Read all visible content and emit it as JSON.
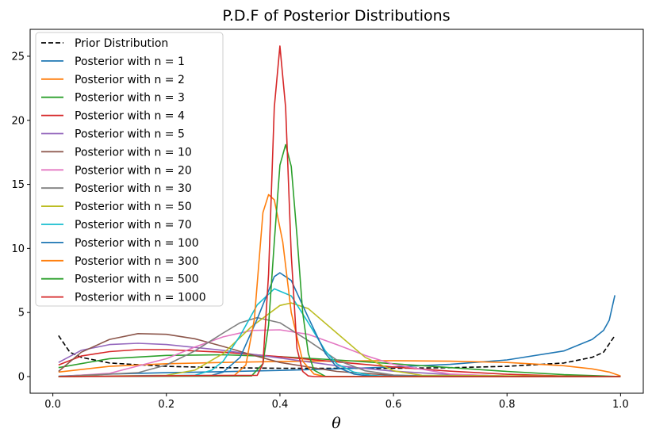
{
  "chart_data": {
    "type": "line",
    "title": "P.D.F of Posterior Distributions",
    "xlabel": "θ",
    "ylabel": "",
    "xlim": [
      -0.04,
      1.04
    ],
    "ylim": [
      -1.3,
      27.1
    ],
    "x_ticks": [
      0,
      0.2,
      0.4,
      0.6,
      0.8,
      1.0
    ],
    "x_tick_labels": [
      "0.0",
      "0.2",
      "0.4",
      "0.6",
      "0.8",
      "1.0"
    ],
    "y_ticks": [
      0,
      5,
      10,
      15,
      20,
      25
    ],
    "y_tick_labels": [
      "0",
      "5",
      "10",
      "15",
      "20",
      "25"
    ],
    "grid": false,
    "legend_position": "top-left",
    "series": [
      {
        "name": "Prior Distribution",
        "color": "#000000",
        "dash": "dashed",
        "x": [
          0.01,
          0.03,
          0.05,
          0.1,
          0.2,
          0.3,
          0.4,
          0.5,
          0.6,
          0.7,
          0.8,
          0.9,
          0.95,
          0.97,
          0.99
        ],
        "y": [
          3.2,
          1.9,
          1.5,
          1.06,
          0.8,
          0.69,
          0.65,
          0.64,
          0.65,
          0.69,
          0.8,
          1.06,
          1.5,
          1.9,
          3.2
        ]
      },
      {
        "name": "Posterior with n = 1",
        "color": "#1f77b4",
        "x": [
          0.01,
          0.1,
          0.2,
          0.3,
          0.4,
          0.5,
          0.6,
          0.7,
          0.8,
          0.9,
          0.95,
          0.97,
          0.98,
          0.99
        ],
        "y": [
          0.03,
          0.2,
          0.3,
          0.38,
          0.48,
          0.6,
          0.75,
          0.95,
          1.3,
          2.0,
          2.9,
          3.6,
          4.4,
          6.35
        ]
      },
      {
        "name": "Posterior with n = 2",
        "color": "#ff7f0e",
        "x": [
          0.01,
          0.1,
          0.2,
          0.3,
          0.4,
          0.5,
          0.6,
          0.7,
          0.8,
          0.9,
          0.95,
          0.98,
          1.0
        ],
        "y": [
          0.35,
          0.8,
          1.0,
          1.1,
          1.18,
          1.22,
          1.24,
          1.2,
          1.1,
          0.85,
          0.6,
          0.35,
          0.05
        ]
      },
      {
        "name": "Posterior with n = 3",
        "color": "#2ca02c",
        "x": [
          0.01,
          0.1,
          0.2,
          0.3,
          0.4,
          0.5,
          0.6,
          0.7,
          0.8,
          0.9,
          1.0
        ],
        "y": [
          0.7,
          1.4,
          1.65,
          1.7,
          1.55,
          1.3,
          1.0,
          0.7,
          0.4,
          0.15,
          0.0
        ]
      },
      {
        "name": "Posterior with n = 4",
        "color": "#d62728",
        "x": [
          0.01,
          0.05,
          0.1,
          0.15,
          0.2,
          0.3,
          0.4,
          0.5,
          0.6,
          0.7,
          0.8,
          0.9,
          1.0
        ],
        "y": [
          0.9,
          1.6,
          1.95,
          2.1,
          2.1,
          1.9,
          1.55,
          1.15,
          0.75,
          0.42,
          0.18,
          0.04,
          0.0
        ]
      },
      {
        "name": "Posterior with n = 5",
        "color": "#9467bd",
        "x": [
          0.01,
          0.05,
          0.1,
          0.15,
          0.2,
          0.3,
          0.4,
          0.5,
          0.6,
          0.7,
          0.8,
          0.9,
          1.0
        ],
        "y": [
          1.1,
          2.05,
          2.5,
          2.6,
          2.5,
          2.05,
          1.45,
          0.85,
          0.42,
          0.16,
          0.04,
          0.0,
          0.0
        ]
      },
      {
        "name": "Posterior with n = 10",
        "color": "#8c564b",
        "x": [
          0.01,
          0.05,
          0.1,
          0.15,
          0.2,
          0.25,
          0.3,
          0.35,
          0.4,
          0.5,
          0.6,
          0.7,
          0.8,
          1.0
        ],
        "y": [
          0.4,
          1.9,
          2.9,
          3.35,
          3.3,
          2.95,
          2.35,
          1.7,
          1.1,
          0.4,
          0.1,
          0.02,
          0.0,
          0.0
        ]
      },
      {
        "name": "Posterior with n = 20",
        "color": "#e377c2",
        "x": [
          0.01,
          0.1,
          0.2,
          0.25,
          0.3,
          0.35,
          0.4,
          0.45,
          0.5,
          0.55,
          0.6,
          0.7,
          0.8,
          1.0
        ],
        "y": [
          0.0,
          0.25,
          1.4,
          2.3,
          3.1,
          3.6,
          3.65,
          3.3,
          2.5,
          1.65,
          0.95,
          0.2,
          0.02,
          0.0
        ]
      },
      {
        "name": "Posterior with n = 30",
        "color": "#7f7f7f",
        "x": [
          0.01,
          0.15,
          0.2,
          0.25,
          0.3,
          0.33,
          0.36,
          0.4,
          0.45,
          0.5,
          0.55,
          0.6,
          0.7,
          1.0
        ],
        "y": [
          0.0,
          0.3,
          0.9,
          2.0,
          3.4,
          4.2,
          4.6,
          4.2,
          2.8,
          1.3,
          0.45,
          0.12,
          0.0,
          0.0
        ]
      },
      {
        "name": "Posterior with n = 50",
        "color": "#bcbd22",
        "x": [
          0.01,
          0.2,
          0.25,
          0.3,
          0.35,
          0.4,
          0.42,
          0.45,
          0.5,
          0.55,
          0.6,
          0.65,
          1.0
        ],
        "y": [
          0.0,
          0.1,
          0.5,
          1.8,
          3.9,
          5.55,
          5.75,
          5.3,
          3.4,
          1.5,
          0.45,
          0.1,
          0.0
        ]
      },
      {
        "name": "Posterior with n = 70",
        "color": "#17becf",
        "x": [
          0.01,
          0.25,
          0.28,
          0.3,
          0.33,
          0.36,
          0.39,
          0.42,
          0.45,
          0.48,
          0.5,
          0.53,
          0.56,
          0.6,
          1.0
        ],
        "y": [
          0.0,
          0.1,
          0.5,
          1.2,
          3.2,
          5.6,
          6.85,
          6.3,
          4.2,
          2.0,
          1.0,
          0.35,
          0.1,
          0.0,
          0.0
        ]
      },
      {
        "name": "Posterior with n = 100",
        "color": "#1f77b4",
        "x": [
          0.01,
          0.28,
          0.3,
          0.33,
          0.36,
          0.39,
          0.4,
          0.42,
          0.45,
          0.48,
          0.5,
          0.53,
          0.56,
          1.0
        ],
        "y": [
          0.0,
          0.1,
          0.35,
          1.5,
          4.5,
          7.8,
          8.1,
          7.5,
          4.6,
          1.8,
          0.75,
          0.2,
          0.03,
          0.0
        ]
      },
      {
        "name": "Posterior with n = 300",
        "color": "#ff7f0e",
        "x": [
          0.01,
          0.32,
          0.34,
          0.355,
          0.37,
          0.38,
          0.39,
          0.405,
          0.42,
          0.44,
          0.46,
          0.48,
          1.0
        ],
        "y": [
          0.0,
          0.1,
          0.9,
          4.5,
          12.8,
          14.2,
          13.8,
          10.5,
          5.0,
          1.2,
          0.2,
          0.0,
          0.0
        ]
      },
      {
        "name": "Posterior with n = 500",
        "color": "#2ca02c",
        "x": [
          0.01,
          0.35,
          0.37,
          0.38,
          0.39,
          0.4,
          0.41,
          0.42,
          0.43,
          0.44,
          0.45,
          0.46,
          0.48,
          1.0
        ],
        "y": [
          0.0,
          0.05,
          1.0,
          4.0,
          10.5,
          16.5,
          18.1,
          16.4,
          11.0,
          5.0,
          1.8,
          0.5,
          0.02,
          0.0
        ]
      },
      {
        "name": "Posterior with n = 1000",
        "color": "#d62728",
        "x": [
          0.01,
          0.36,
          0.37,
          0.38,
          0.39,
          0.4,
          0.41,
          0.42,
          0.43,
          0.44,
          0.45,
          0.46,
          1.0
        ],
        "y": [
          0.0,
          0.1,
          1.0,
          8.0,
          21.0,
          25.8,
          21.0,
          9.5,
          2.2,
          0.4,
          0.05,
          0.0,
          0.0
        ]
      }
    ]
  }
}
